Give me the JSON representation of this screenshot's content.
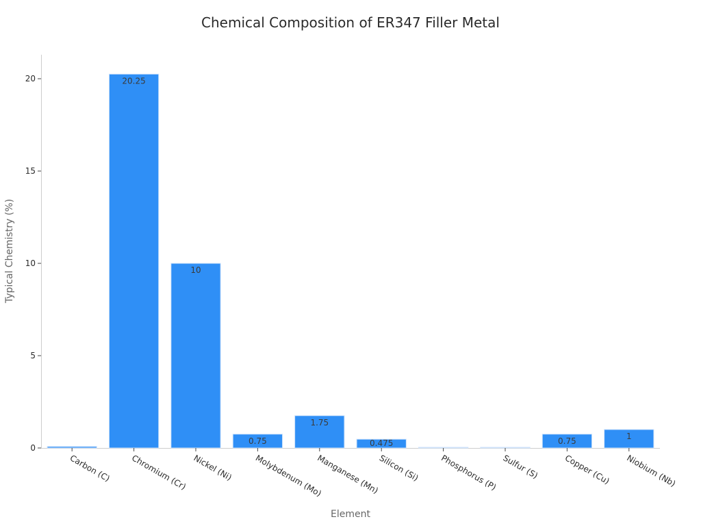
{
  "chart_data": {
    "type": "bar",
    "title": "Chemical Composition of ER347 Filler Metal",
    "xlabel": "Element",
    "ylabel": "Typical Chemistry (%)",
    "categories": [
      "Carbon (C)",
      "Chromium (Cr)",
      "Nickel (Ni)",
      "Molybdenum (Mo)",
      "Manganese (Mn)",
      "Silicon (Si)",
      "Phosphorus (P)",
      "Sulfur (S)",
      "Copper (Cu)",
      "Niobium (Nb)"
    ],
    "values": [
      0.08,
      20.25,
      10,
      0.75,
      1.75,
      0.475,
      0.03,
      0.03,
      0.75,
      1
    ],
    "data_labels": [
      "",
      "20.25",
      "10",
      "0.75",
      "1.75",
      "0.475",
      "",
      "",
      "0.75",
      "1"
    ],
    "ylim": [
      0,
      21.3
    ],
    "yticks": [
      0,
      5,
      10,
      15,
      20
    ],
    "bar_color": "#2f8ff6",
    "grid": false,
    "legend": "none"
  }
}
